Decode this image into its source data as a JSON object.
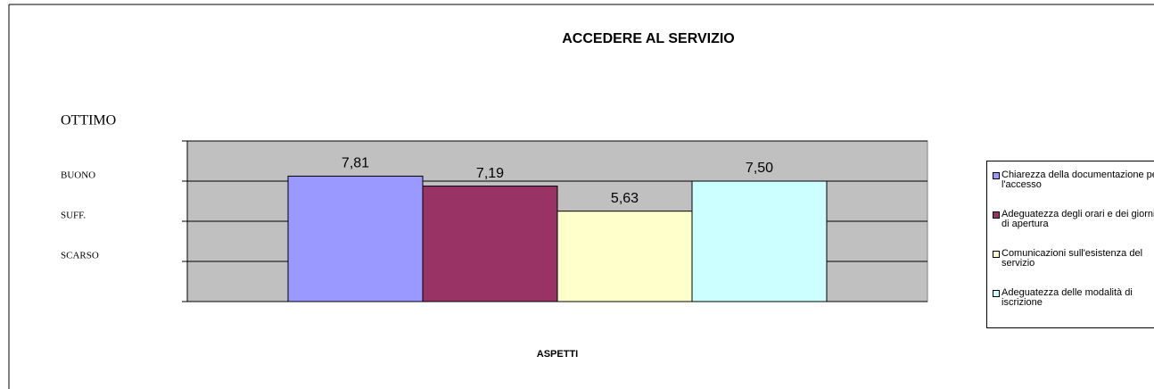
{
  "chart_data": {
    "type": "bar",
    "title": "ACCEDERE AL SERVIZIO",
    "x_label": "ASPETTI",
    "categories": [
      null
    ],
    "series": [
      {
        "name": "Chiarezza della documentazione per l'accesso",
        "color": "#9999ff",
        "values": [
          7.81
        ],
        "value_labels": [
          "7,81"
        ]
      },
      {
        "name": "Adeguatezza degli orari  e dei giorni di apertura",
        "color": "#993366",
        "values": [
          7.19
        ],
        "value_labels": [
          "7,19"
        ]
      },
      {
        "name": "Comunicazioni sull'esistenza del servizio",
        "color": "#ffffcc",
        "values": [
          5.63
        ],
        "value_labels": [
          "5,63"
        ]
      },
      {
        "name": "Adeguatezza delle modalità di iscrizione",
        "color": "#ccffff",
        "values": [
          7.5
        ],
        "value_labels": [
          "7,50"
        ]
      }
    ],
    "ylim": [
      0,
      10
    ],
    "yticks": [
      {
        "value": 2.5,
        "label": "SCARSO"
      },
      {
        "value": 5,
        "label": "SUFF."
      },
      {
        "value": 7.5,
        "label": "BUONO"
      },
      {
        "value": 10,
        "label": "OTTIMO"
      }
    ],
    "grid": true,
    "plot_background": "#c0c0c0",
    "legend": "right"
  }
}
